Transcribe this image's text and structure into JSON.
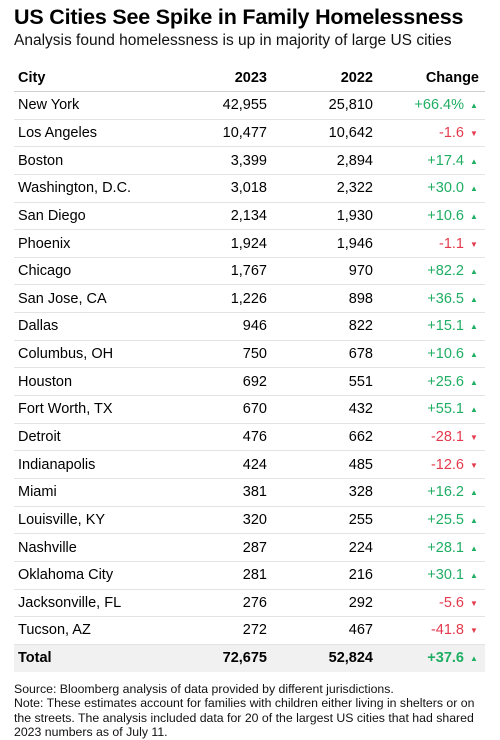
{
  "header": {
    "title": "US Cities See Spike in Family Homelessness",
    "subtitle": "Analysis found homelessness is up in majority of large US cities"
  },
  "chart_data": {
    "type": "table",
    "columns": [
      "City",
      "2023",
      "2022",
      "Change"
    ],
    "rows": [
      {
        "city": "New York",
        "v2023": "42,955",
        "v2022": "25,810",
        "change": "+66.4%",
        "direction": "up"
      },
      {
        "city": "Los Angeles",
        "v2023": "10,477",
        "v2022": "10,642",
        "change": "-1.6",
        "direction": "down"
      },
      {
        "city": "Boston",
        "v2023": "3,399",
        "v2022": "2,894",
        "change": "+17.4",
        "direction": "up"
      },
      {
        "city": "Washington, D.C.",
        "v2023": "3,018",
        "v2022": "2,322",
        "change": "+30.0",
        "direction": "up"
      },
      {
        "city": "San Diego",
        "v2023": "2,134",
        "v2022": "1,930",
        "change": "+10.6",
        "direction": "up"
      },
      {
        "city": "Phoenix",
        "v2023": "1,924",
        "v2022": "1,946",
        "change": "-1.1",
        "direction": "down"
      },
      {
        "city": "Chicago",
        "v2023": "1,767",
        "v2022": "970",
        "change": "+82.2",
        "direction": "up"
      },
      {
        "city": "San Jose, CA",
        "v2023": "1,226",
        "v2022": "898",
        "change": "+36.5",
        "direction": "up"
      },
      {
        "city": "Dallas",
        "v2023": "946",
        "v2022": "822",
        "change": "+15.1",
        "direction": "up"
      },
      {
        "city": "Columbus, OH",
        "v2023": "750",
        "v2022": "678",
        "change": "+10.6",
        "direction": "up"
      },
      {
        "city": "Houston",
        "v2023": "692",
        "v2022": "551",
        "change": "+25.6",
        "direction": "up"
      },
      {
        "city": "Fort Worth, TX",
        "v2023": "670",
        "v2022": "432",
        "change": "+55.1",
        "direction": "up"
      },
      {
        "city": "Detroit",
        "v2023": "476",
        "v2022": "662",
        "change": "-28.1",
        "direction": "down"
      },
      {
        "city": "Indianapolis",
        "v2023": "424",
        "v2022": "485",
        "change": "-12.6",
        "direction": "down"
      },
      {
        "city": "Miami",
        "v2023": "381",
        "v2022": "328",
        "change": "+16.2",
        "direction": "up"
      },
      {
        "city": "Louisville, KY",
        "v2023": "320",
        "v2022": "255",
        "change": "+25.5",
        "direction": "up"
      },
      {
        "city": "Nashville",
        "v2023": "287",
        "v2022": "224",
        "change": "+28.1",
        "direction": "up"
      },
      {
        "city": "Oklahoma City",
        "v2023": "281",
        "v2022": "216",
        "change": "+30.1",
        "direction": "up"
      },
      {
        "city": "Jacksonville, FL",
        "v2023": "276",
        "v2022": "292",
        "change": "-5.6",
        "direction": "down"
      },
      {
        "city": "Tucson, AZ",
        "v2023": "272",
        "v2022": "467",
        "change": "-41.8",
        "direction": "down"
      }
    ],
    "total": {
      "city": "Total",
      "v2023": "72,675",
      "v2022": "52,824",
      "change": "+37.6",
      "direction": "up"
    }
  },
  "notes": {
    "source": "Source: Bloomberg analysis of data provided by different jurisdictions.",
    "note": "Note: These estimates account for families with children either living in shelters or on the streets. The analysis included data for 20 of the largest US cities that had shared 2023 numbers as of July 11."
  },
  "colors": {
    "positive": "#1fae63",
    "negative": "#e33a4d",
    "total_row_bg": "#f1f1f1"
  },
  "icons": {
    "up": "triangle-up-icon",
    "down": "triangle-down-icon"
  }
}
